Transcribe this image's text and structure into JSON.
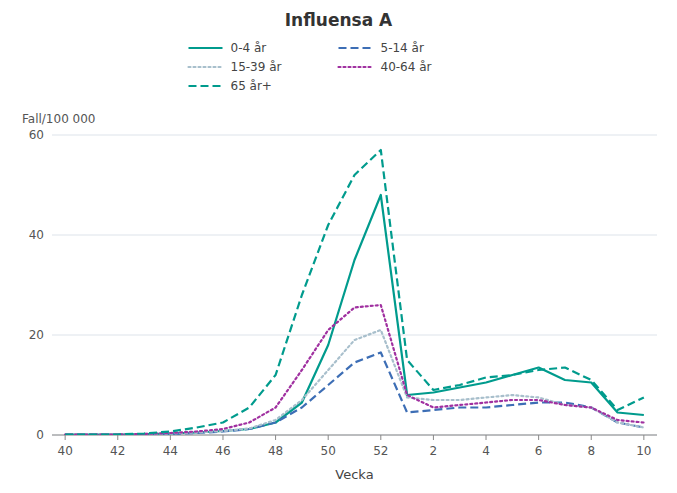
{
  "chart_data": {
    "type": "line",
    "title": "Influensa A",
    "xlabel": "Vecka",
    "ylabel": "Fall/100 000",
    "categories": [
      "40",
      null,
      "42",
      null,
      "44",
      null,
      "46",
      null,
      "48",
      null,
      "50",
      null,
      "52",
      null,
      "2",
      null,
      "4",
      null,
      "6",
      null,
      "8",
      null,
      "10"
    ],
    "ylim": [
      0,
      60
    ],
    "yticks": [
      0,
      20,
      40,
      60
    ],
    "grid": true,
    "legend": "top",
    "series": [
      {
        "name": "0-4 år",
        "color": "#009b8d",
        "line_style": "solid",
        "values": [
          0.1,
          0.1,
          0.1,
          0.2,
          0.3,
          0.5,
          0.8,
          1.2,
          2.5,
          6.5,
          18.0,
          35.0,
          48.0,
          8.0,
          8.5,
          9.5,
          10.5,
          12.0,
          13.5,
          11.0,
          10.5,
          4.5,
          4.0
        ]
      },
      {
        "name": "5-14 år",
        "color": "#3d6eb5",
        "line_style": "dashed",
        "values": [
          0.1,
          0.1,
          0.1,
          0.1,
          0.2,
          0.4,
          0.7,
          1.2,
          2.5,
          5.5,
          10.0,
          14.5,
          16.5,
          4.5,
          5.0,
          5.5,
          5.5,
          6.0,
          6.5,
          6.5,
          5.5,
          2.5,
          1.5
        ]
      },
      {
        "name": "15-39 år",
        "color": "#a8bfcc",
        "line_style": "dotted",
        "values": [
          0.1,
          0.1,
          0.1,
          0.2,
          0.3,
          0.5,
          0.8,
          1.3,
          3.0,
          7.0,
          13.0,
          19.0,
          21.0,
          7.5,
          7.0,
          7.0,
          7.5,
          8.0,
          7.5,
          6.0,
          5.5,
          2.5,
          1.5
        ]
      },
      {
        "name": "40-64 år",
        "color": "#a030a0",
        "line_style": "dotted",
        "values": [
          0.1,
          0.1,
          0.1,
          0.2,
          0.4,
          0.7,
          1.2,
          2.5,
          5.5,
          13.0,
          21.0,
          25.5,
          26.0,
          8.0,
          5.5,
          6.0,
          6.5,
          7.0,
          7.0,
          6.0,
          5.5,
          3.0,
          2.5
        ]
      },
      {
        "name": "65 år+",
        "color": "#009b8d",
        "line_style": "dashed",
        "values": [
          0.1,
          0.1,
          0.1,
          0.3,
          0.7,
          1.5,
          2.5,
          5.5,
          12.0,
          28.0,
          42.0,
          52.0,
          57.0,
          15.0,
          9.0,
          10.0,
          11.5,
          12.0,
          13.0,
          13.5,
          11.0,
          5.0,
          7.5
        ]
      }
    ]
  }
}
